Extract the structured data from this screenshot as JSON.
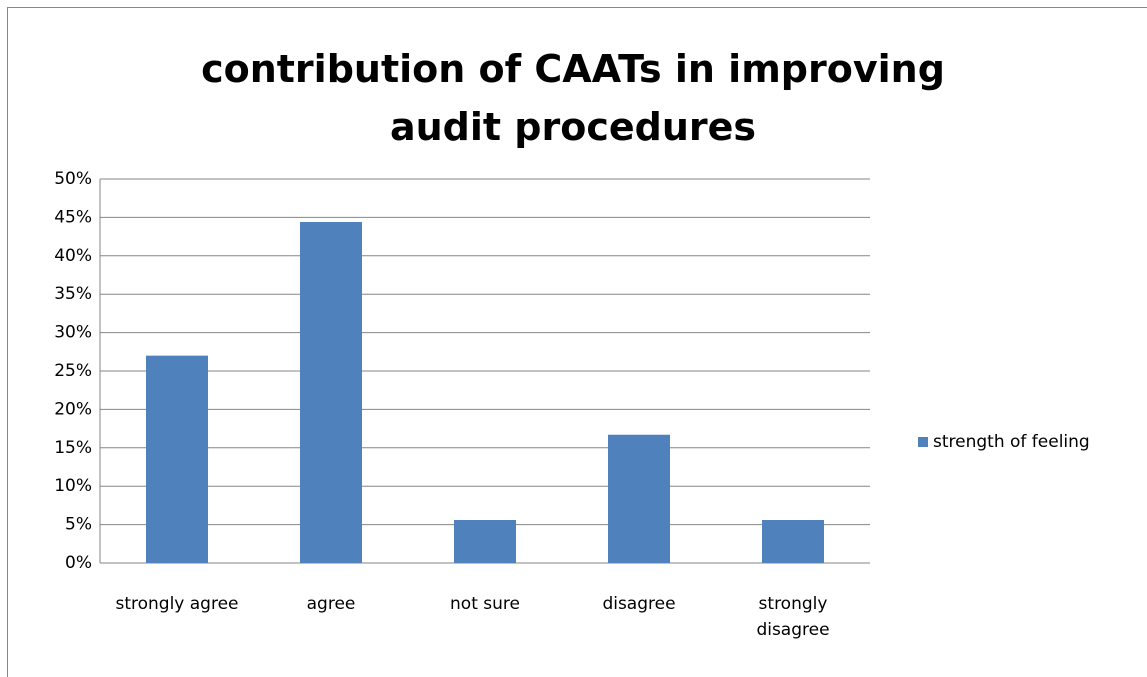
{
  "chart_data": {
    "type": "bar",
    "title": "contribution of CAATs in improving audit procedures",
    "categories": [
      "strongly agree",
      "agree",
      "not sure",
      "disagree",
      "strongly disagree"
    ],
    "series": [
      {
        "name": "strength of feeling",
        "color": "#4f81bd",
        "values": [
          27,
          44.4,
          5.6,
          16.7,
          5.6
        ]
      }
    ],
    "ylim": [
      0,
      50
    ],
    "yticks": [
      {
        "value": 0,
        "label": "0%"
      },
      {
        "value": 5,
        "label": "5%"
      },
      {
        "value": 10,
        "label": "10%"
      },
      {
        "value": 15,
        "label": "15%"
      },
      {
        "value": 20,
        "label": "20%"
      },
      {
        "value": 25,
        "label": "25%"
      },
      {
        "value": 30,
        "label": "30%"
      },
      {
        "value": 35,
        "label": "35%"
      },
      {
        "value": 40,
        "label": "40%"
      },
      {
        "value": 45,
        "label": "45%"
      },
      {
        "value": 50,
        "label": "50%"
      }
    ],
    "grid": true,
    "legend": "right"
  }
}
